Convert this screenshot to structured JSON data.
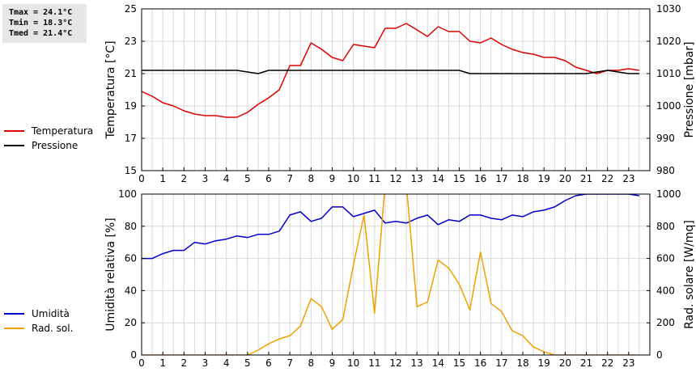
{
  "stats": {
    "tmax": "Tmax = 24.1°C",
    "tmin": "Tmin = 18.3°C",
    "tmed": "Tmed = 21.4°C"
  },
  "legend_top": [
    {
      "label": "Temperatura",
      "color": "#dd0000"
    },
    {
      "label": "Pressione",
      "color": "#000000"
    }
  ],
  "legend_bottom": [
    {
      "label": "Umidità",
      "color": "#0000cc"
    },
    {
      "label": "Rad. sol.",
      "color": "#f0a000"
    }
  ],
  "chart_data": [
    {
      "type": "line",
      "xlim": [
        0,
        24
      ],
      "xticks": [
        0,
        1,
        2,
        3,
        4,
        5,
        6,
        7,
        8,
        9,
        10,
        11,
        12,
        13,
        14,
        15,
        16,
        17,
        18,
        19,
        20,
        21,
        22,
        23
      ],
      "grid": true,
      "ylabel": "Temperatura [°C]",
      "ylim": [
        15,
        25
      ],
      "yticks": [
        15,
        17,
        19,
        21,
        23,
        25
      ],
      "y2label": "Pressione [mbar]",
      "y2lim": [
        980,
        1030
      ],
      "y2ticks": [
        980,
        990,
        1000,
        1010,
        1020,
        1030
      ],
      "series": [
        {
          "name": "Temperatura",
          "axis": "left",
          "color": "#dd0000",
          "x": [
            0,
            0.5,
            1,
            1.5,
            2,
            2.5,
            3,
            3.5,
            4,
            4.5,
            5,
            5.5,
            6,
            6.5,
            7,
            7.5,
            8,
            8.5,
            9,
            9.5,
            10,
            10.5,
            11,
            11.5,
            12,
            12.5,
            13,
            13.5,
            14,
            14.5,
            15,
            15.5,
            16,
            16.5,
            17,
            17.5,
            18,
            18.5,
            19,
            19.5,
            20,
            20.5,
            21,
            21.5,
            22,
            22.5,
            23,
            23.5
          ],
          "values": [
            19.9,
            19.6,
            19.2,
            19.0,
            18.7,
            18.5,
            18.4,
            18.4,
            18.3,
            18.3,
            18.6,
            19.1,
            19.5,
            20.0,
            21.5,
            21.5,
            22.9,
            22.5,
            22.0,
            21.8,
            22.8,
            22.7,
            22.6,
            23.8,
            23.8,
            24.1,
            23.7,
            23.3,
            23.9,
            23.6,
            23.6,
            23.0,
            22.9,
            23.2,
            22.8,
            22.5,
            22.3,
            22.2,
            22.0,
            22.0,
            21.8,
            21.4,
            21.2,
            21.0,
            21.2,
            21.2,
            21.3,
            21.2
          ]
        },
        {
          "name": "Pressione",
          "axis": "right",
          "color": "#000000",
          "x": [
            0,
            4.5,
            5.5,
            6,
            15,
            15.5,
            21,
            22,
            23,
            23.5
          ],
          "values": [
            1011,
            1011,
            1010,
            1011,
            1011,
            1010,
            1010,
            1011,
            1010,
            1010
          ]
        }
      ]
    },
    {
      "type": "line",
      "xlim": [
        0,
        24
      ],
      "xticks": [
        0,
        1,
        2,
        3,
        4,
        5,
        6,
        7,
        8,
        9,
        10,
        11,
        12,
        13,
        14,
        15,
        16,
        17,
        18,
        19,
        20,
        21,
        22,
        23
      ],
      "grid": true,
      "ylabel": "Umidità relativa [%]",
      "ylim": [
        0,
        100
      ],
      "yticks": [
        0,
        20,
        40,
        60,
        80,
        100
      ],
      "y2label": "Rad. solare [W/mq]",
      "y2lim": [
        0,
        1000
      ],
      "y2ticks": [
        0,
        200,
        400,
        600,
        800,
        1000
      ],
      "series": [
        {
          "name": "Umidità",
          "axis": "left",
          "color": "#0000cc",
          "x": [
            0,
            0.5,
            1,
            1.5,
            2,
            2.5,
            3,
            3.5,
            4,
            4.5,
            5,
            5.5,
            6,
            6.5,
            7,
            7.5,
            8,
            8.5,
            9,
            9.5,
            10,
            10.5,
            11,
            11.5,
            12,
            12.5,
            13,
            13.5,
            14,
            14.5,
            15,
            15.5,
            16,
            16.5,
            17,
            17.5,
            18,
            18.5,
            19,
            19.5,
            20,
            20.5,
            21,
            21.5,
            22,
            22.5,
            23,
            23.5
          ],
          "values": [
            60,
            60,
            63,
            65,
            65,
            70,
            69,
            71,
            72,
            74,
            73,
            75,
            75,
            77,
            87,
            89,
            83,
            85,
            92,
            92,
            86,
            88,
            90,
            82,
            83,
            82,
            85,
            87,
            81,
            84,
            83,
            87,
            87,
            85,
            84,
            87,
            86,
            89,
            90,
            92,
            96,
            99,
            100,
            100,
            100,
            100,
            100,
            99
          ]
        },
        {
          "name": "Rad. sol.",
          "axis": "right",
          "color": "#f0a000",
          "x": [
            0,
            0.5,
            1,
            1.5,
            2,
            2.5,
            3,
            3.5,
            4,
            4.5,
            5,
            5.5,
            6,
            6.5,
            7,
            7.5,
            8,
            8.5,
            9,
            9.5,
            10,
            10.5,
            11,
            11.5,
            12,
            12.5,
            13,
            13.5,
            14,
            14.5,
            15,
            15.5,
            16,
            16.5,
            17,
            17.5,
            18,
            18.5,
            19,
            19.5,
            20,
            20.5,
            21,
            21.5,
            22,
            22.5,
            23,
            23.5
          ],
          "values": [
            0,
            0,
            0,
            0,
            0,
            0,
            0,
            0,
            0,
            0,
            0,
            30,
            70,
            100,
            120,
            180,
            350,
            300,
            160,
            220,
            560,
            870,
            260,
            1060,
            1060,
            1060,
            300,
            330,
            590,
            540,
            440,
            280,
            640,
            320,
            270,
            150,
            120,
            50,
            20,
            0,
            0,
            0,
            0,
            0,
            0,
            0,
            0,
            0
          ]
        }
      ]
    }
  ]
}
